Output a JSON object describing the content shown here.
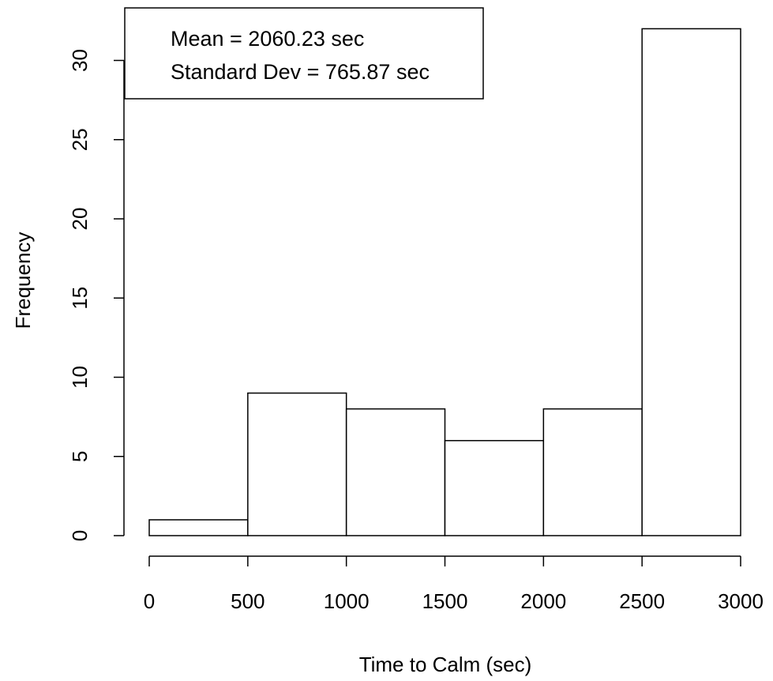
{
  "chart_data": {
    "type": "bar",
    "subtype": "histogram",
    "bins": [
      {
        "start": 0,
        "end": 500,
        "count": 1
      },
      {
        "start": 500,
        "end": 1000,
        "count": 9
      },
      {
        "start": 1000,
        "end": 1500,
        "count": 8
      },
      {
        "start": 1500,
        "end": 2000,
        "count": 6
      },
      {
        "start": 2000,
        "end": 2500,
        "count": 8
      },
      {
        "start": 2500,
        "end": 3000,
        "count": 32
      }
    ],
    "xlabel": "Time to Calm (sec)",
    "ylabel": "Frequency",
    "xlim": [
      0,
      3000
    ],
    "ylim": [
      0,
      32
    ],
    "x_ticks": [
      0,
      500,
      1000,
      1500,
      2000,
      2500,
      3000
    ],
    "y_ticks": [
      0,
      5,
      10,
      15,
      20,
      25,
      30
    ],
    "grid": false,
    "legend": {
      "position": "top-left",
      "lines": [
        "Mean = 2060.23 sec",
        "Standard Dev = 765.87 sec"
      ]
    },
    "colors": {
      "bar_fill": "#ffffff",
      "stroke": "#000000"
    }
  }
}
